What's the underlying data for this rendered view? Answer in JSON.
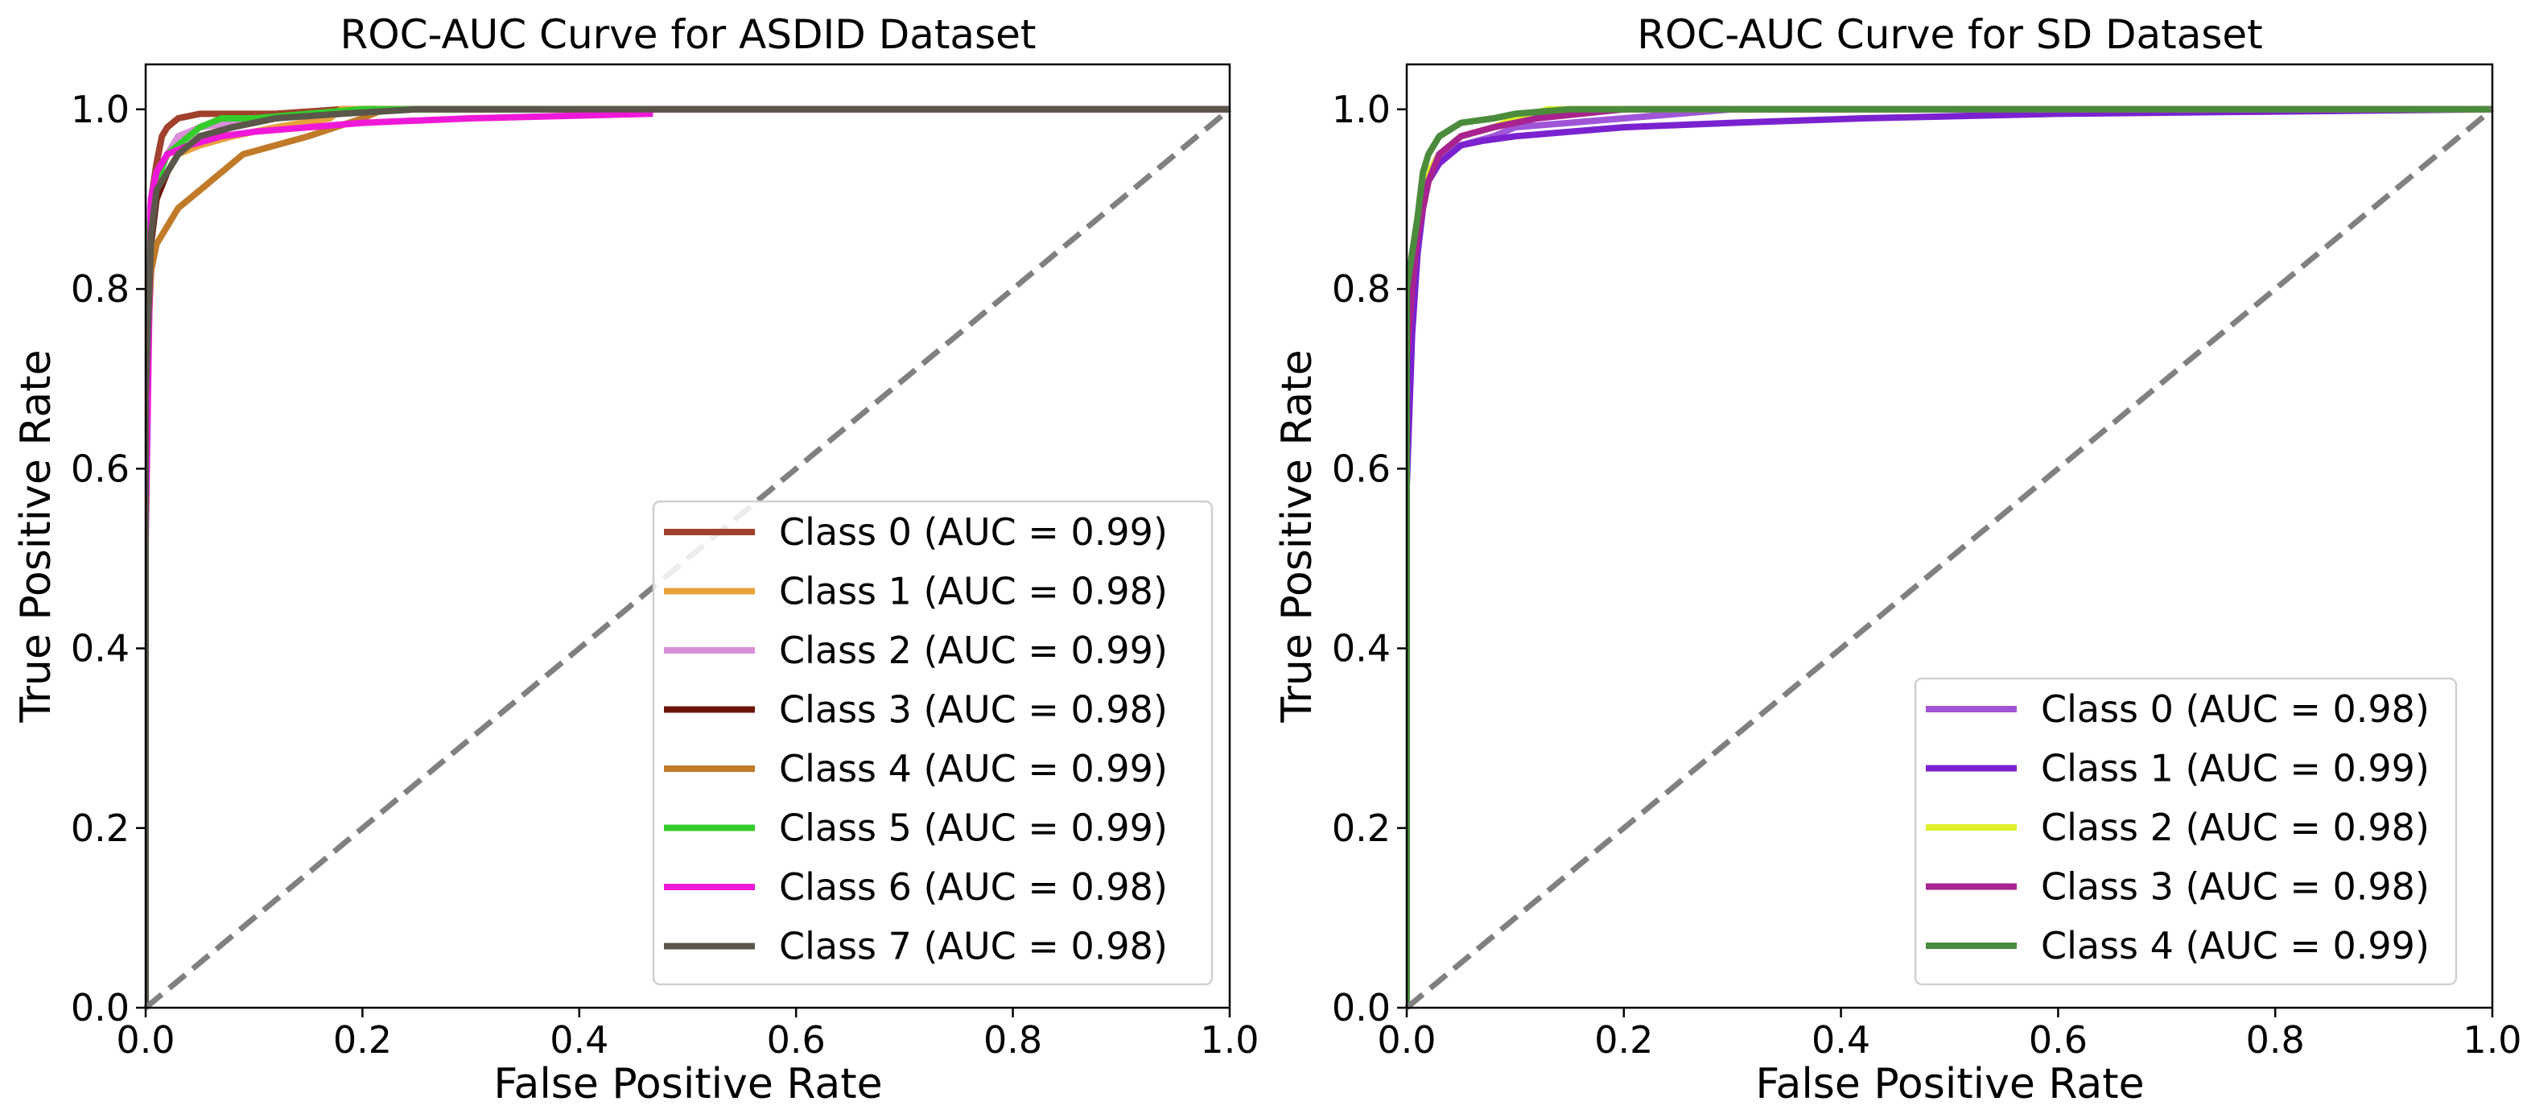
{
  "chart_data": [
    {
      "type": "line",
      "title": "ROC-AUC Curve for ASDID Dataset",
      "xlabel": "False Positive Rate",
      "ylabel": "True Positive Rate",
      "xlim": [
        0.0,
        1.0
      ],
      "ylim": [
        0.0,
        1.05
      ],
      "xticks": [
        "0.0",
        "0.2",
        "0.4",
        "0.6",
        "0.8",
        "1.0"
      ],
      "yticks": [
        "0.0",
        "0.2",
        "0.4",
        "0.6",
        "0.8",
        "1.0"
      ],
      "legend_position": "bottom-right",
      "diagonal": {
        "x": [
          0,
          1
        ],
        "y": [
          0,
          1
        ],
        "color": "#808080",
        "style": "dashed"
      },
      "series": [
        {
          "name": "Class 0 (AUC = 0.99)",
          "color": "#A0402D",
          "x": [
            0,
            0,
            0.005,
            0.01,
            0.015,
            0.02,
            0.03,
            0.05,
            0.08,
            0.12,
            0.18,
            0.25,
            0.5,
            1.0
          ],
          "y": [
            0,
            0.78,
            0.9,
            0.94,
            0.97,
            0.98,
            0.99,
            0.995,
            0.995,
            0.995,
            1.0,
            1.0,
            1.0,
            1.0
          ]
        },
        {
          "name": "Class 1 (AUC = 0.98)",
          "color": "#E8A23A",
          "x": [
            0,
            0,
            0.005,
            0.01,
            0.02,
            0.03,
            0.05,
            0.08,
            0.12,
            0.17,
            0.18,
            0.22,
            0.5,
            1.0
          ],
          "y": [
            0,
            0.8,
            0.86,
            0.9,
            0.93,
            0.95,
            0.96,
            0.97,
            0.98,
            0.99,
            1.0,
            1.0,
            1.0,
            1.0
          ]
        },
        {
          "name": "Class 2 (AUC = 0.99)",
          "color": "#D88FD8",
          "x": [
            0,
            0,
            0.005,
            0.01,
            0.02,
            0.03,
            0.05,
            0.08,
            0.12,
            0.2,
            0.3,
            1.0
          ],
          "y": [
            0,
            0.85,
            0.9,
            0.93,
            0.95,
            0.97,
            0.98,
            0.985,
            0.99,
            1.0,
            1.0,
            1.0
          ]
        },
        {
          "name": "Class 3 (AUC = 0.98)",
          "color": "#6B1408",
          "x": [
            0,
            0,
            0.005,
            0.01,
            0.02,
            0.03,
            0.05,
            0.08,
            0.12,
            0.2,
            1.0
          ],
          "y": [
            0,
            0.68,
            0.85,
            0.9,
            0.93,
            0.95,
            0.97,
            0.98,
            0.99,
            1.0,
            1.0
          ]
        },
        {
          "name": "Class 4 (AUC = 0.99)",
          "color": "#C07A28",
          "x": [
            0,
            0,
            0.005,
            0.01,
            0.02,
            0.03,
            0.05,
            0.07,
            0.09,
            0.12,
            0.15,
            0.2,
            0.22,
            0.5,
            1.0
          ],
          "y": [
            0,
            0.68,
            0.82,
            0.85,
            0.87,
            0.89,
            0.91,
            0.93,
            0.95,
            0.96,
            0.97,
            0.99,
            1.0,
            1.0,
            1.0
          ]
        },
        {
          "name": "Class 5 (AUC = 0.99)",
          "color": "#33CC2A",
          "x": [
            0,
            0,
            0.005,
            0.01,
            0.02,
            0.03,
            0.05,
            0.07,
            0.1,
            0.15,
            0.2,
            1.0
          ],
          "y": [
            0,
            0.85,
            0.88,
            0.92,
            0.95,
            0.96,
            0.98,
            0.99,
            0.99,
            0.995,
            1.0,
            1.0
          ]
        },
        {
          "name": "Class 6 (AUC = 0.98)",
          "color": "#F018D8",
          "x": [
            0,
            0,
            0.005,
            0.01,
            0.02,
            0.04,
            0.07,
            0.1,
            0.2,
            0.3,
            0.465,
            0.465,
            1.0
          ],
          "y": [
            0,
            0.52,
            0.9,
            0.93,
            0.95,
            0.96,
            0.97,
            0.975,
            0.985,
            0.99,
            0.995,
            1.0,
            1.0
          ]
        },
        {
          "name": "Class 7 (AUC = 0.98)",
          "color": "#5A564A",
          "x": [
            0,
            0,
            0.005,
            0.01,
            0.02,
            0.03,
            0.05,
            0.08,
            0.12,
            0.18,
            0.25,
            1.0
          ],
          "y": [
            0,
            0.68,
            0.86,
            0.91,
            0.93,
            0.95,
            0.97,
            0.98,
            0.99,
            0.995,
            1.0,
            1.0
          ]
        }
      ]
    },
    {
      "type": "line",
      "title": "ROC-AUC Curve for SD Dataset",
      "xlabel": "False Positive Rate",
      "ylabel": "True Positive Rate",
      "xlim": [
        0.0,
        1.0
      ],
      "ylim": [
        0.0,
        1.05
      ],
      "xticks": [
        "0.0",
        "0.2",
        "0.4",
        "0.6",
        "0.8",
        "1.0"
      ],
      "yticks": [
        "0.0",
        "0.2",
        "0.4",
        "0.6",
        "0.8",
        "1.0"
      ],
      "legend_position": "bottom-right",
      "diagonal": {
        "x": [
          0,
          1
        ],
        "y": [
          0,
          1
        ],
        "color": "#808080",
        "style": "dashed"
      },
      "series": [
        {
          "name": "Class 0 (AUC = 0.98)",
          "color": "#A055D8",
          "x": [
            0,
            0,
            0.005,
            0.01,
            0.015,
            0.02,
            0.03,
            0.05,
            0.08,
            0.1,
            0.15,
            0.2,
            0.3,
            1.0
          ],
          "y": [
            0,
            0.65,
            0.78,
            0.85,
            0.9,
            0.93,
            0.95,
            0.96,
            0.97,
            0.98,
            0.985,
            0.99,
            1.0,
            1.0
          ]
        },
        {
          "name": "Class 1 (AUC = 0.99)",
          "color": "#7A22D0",
          "x": [
            0,
            0,
            0.005,
            0.01,
            0.015,
            0.02,
            0.03,
            0.05,
            0.07,
            0.1,
            0.15,
            0.2,
            0.3,
            0.42,
            0.6,
            1.0
          ],
          "y": [
            0,
            0.58,
            0.75,
            0.84,
            0.89,
            0.92,
            0.94,
            0.96,
            0.965,
            0.97,
            0.975,
            0.98,
            0.985,
            0.99,
            0.995,
            1.0
          ]
        },
        {
          "name": "Class 2 (AUC = 0.98)",
          "color": "#DDF02A",
          "x": [
            0,
            0,
            0.005,
            0.01,
            0.02,
            0.03,
            0.05,
            0.08,
            0.1,
            0.13,
            0.2,
            1.0
          ],
          "y": [
            0,
            0.75,
            0.82,
            0.88,
            0.93,
            0.95,
            0.97,
            0.98,
            0.99,
            1.0,
            1.0,
            1.0
          ]
        },
        {
          "name": "Class 3 (AUC = 0.98)",
          "color": "#A8238F",
          "x": [
            0,
            0,
            0.005,
            0.01,
            0.02,
            0.03,
            0.05,
            0.08,
            0.12,
            0.2,
            1.0
          ],
          "y": [
            0,
            0.72,
            0.8,
            0.86,
            0.92,
            0.95,
            0.97,
            0.98,
            0.99,
            1.0,
            1.0
          ]
        },
        {
          "name": "Class 4 (AUC = 0.99)",
          "color": "#4A8C3C",
          "x": [
            0,
            0,
            0.005,
            0.01,
            0.015,
            0.02,
            0.03,
            0.05,
            0.08,
            0.1,
            0.15,
            1.0
          ],
          "y": [
            0,
            0.8,
            0.84,
            0.88,
            0.93,
            0.95,
            0.97,
            0.985,
            0.99,
            0.995,
            1.0,
            1.0
          ]
        }
      ]
    }
  ]
}
